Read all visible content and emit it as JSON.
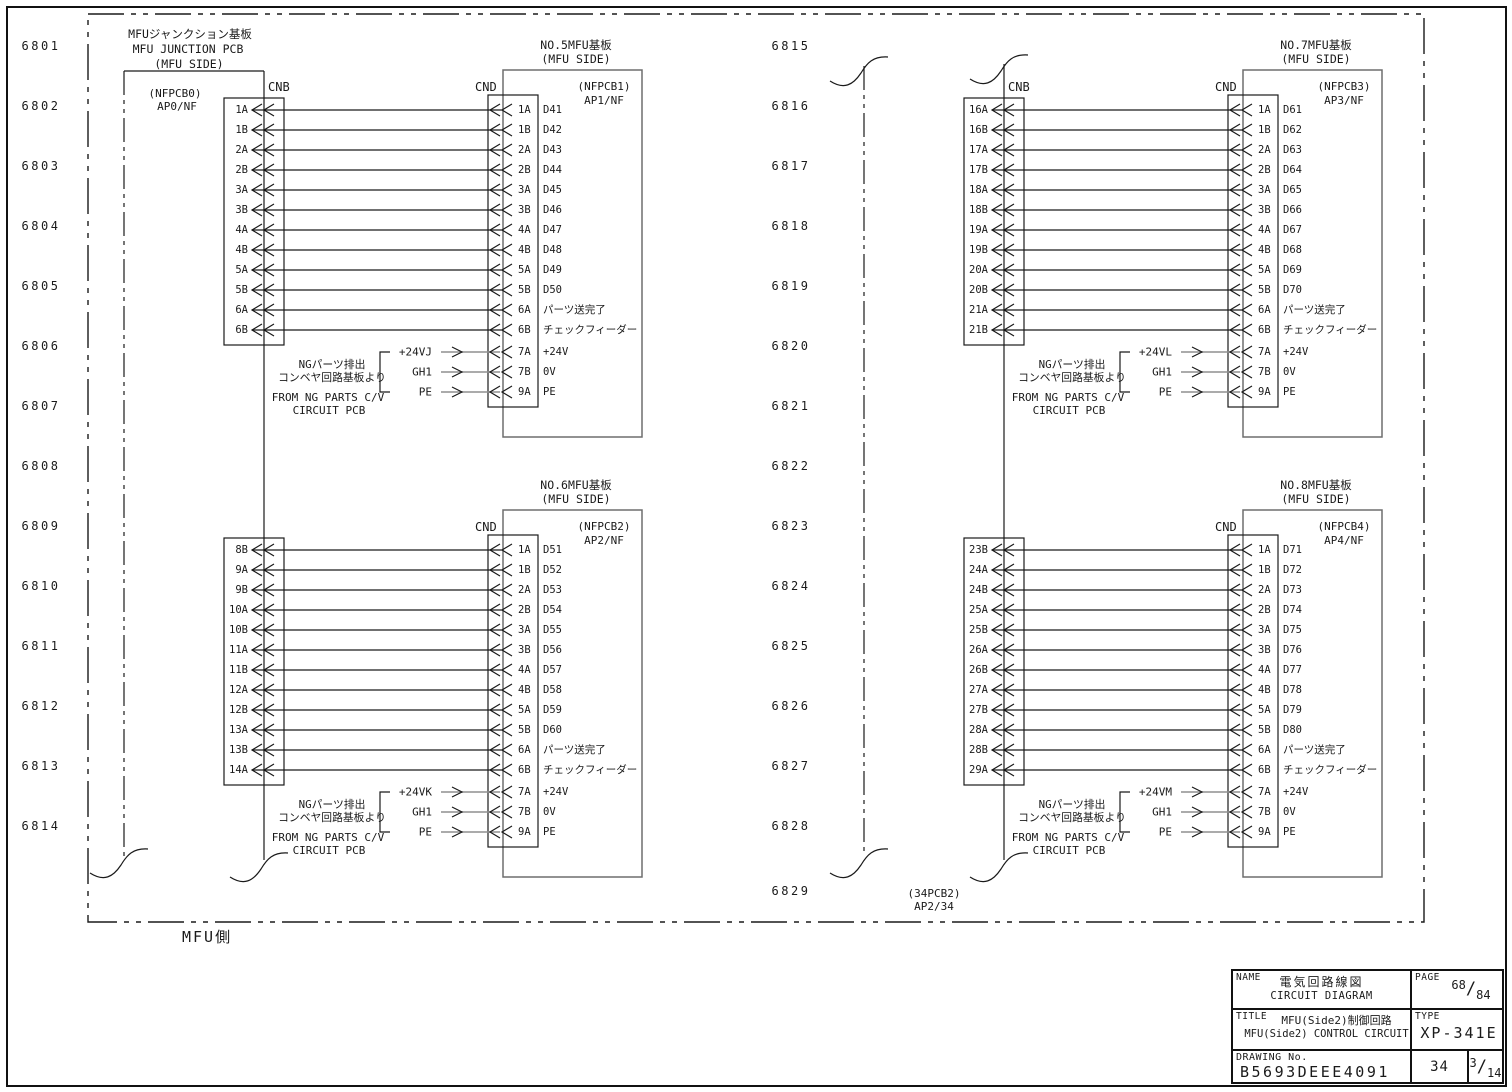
{
  "page": {
    "side_label": "MFU側",
    "row_numbers_left": [
      "6801",
      "6802",
      "6803",
      "6804",
      "6805",
      "6806",
      "6807",
      "6808",
      "6809",
      "6810",
      "6811",
      "6812",
      "6813",
      "6814"
    ],
    "row_numbers_right": [
      "6815",
      "6816",
      "6817",
      "6818",
      "6819",
      "6820",
      "6821",
      "6822",
      "6823",
      "6824",
      "6825",
      "6826",
      "6827",
      "6828",
      "6829"
    ]
  },
  "junction_pcb": {
    "title_jp": "MFUジャンクション基板",
    "title_en": "MFU JUNCTION PCB",
    "side": "(MFU SIDE)",
    "ref": "(NFPCB0)",
    "designator": "AP0/NF",
    "connector": "CNB"
  },
  "tail": {
    "ref": "(34PCB2)",
    "designator": "AP2/34"
  },
  "ng_source_note": {
    "jp_line1": "NGパーツ排出",
    "jp_line2": "コンベヤ回路基板より",
    "en_line1": "FROM NG PARTS C/V",
    "en_line2": "CIRCUIT PCB"
  },
  "boards": [
    {
      "title_jp": "NO.5MFU基板",
      "side": "(MFU SIDE)",
      "ref": "(NFPCB1)",
      "designator": "AP1/NF",
      "cnb_label": "CNB",
      "cnd_label": "CND",
      "pins": [
        {
          "cnb": "1A",
          "cnd": "1A",
          "signal": "D41"
        },
        {
          "cnb": "1B",
          "cnd": "1B",
          "signal": "D42"
        },
        {
          "cnb": "2A",
          "cnd": "2A",
          "signal": "D43"
        },
        {
          "cnb": "2B",
          "cnd": "2B",
          "signal": "D44"
        },
        {
          "cnb": "3A",
          "cnd": "3A",
          "signal": "D45"
        },
        {
          "cnb": "3B",
          "cnd": "3B",
          "signal": "D46"
        },
        {
          "cnb": "4A",
          "cnd": "4A",
          "signal": "D47"
        },
        {
          "cnb": "4B",
          "cnd": "4B",
          "signal": "D48"
        },
        {
          "cnb": "5A",
          "cnd": "5A",
          "signal": "D49"
        },
        {
          "cnb": "5B",
          "cnd": "5B",
          "signal": "D50"
        },
        {
          "cnb": "6A",
          "cnd": "6A",
          "signal": "パーツ送完了"
        },
        {
          "cnb": "6B",
          "cnd": "6B",
          "signal": "チェックフィーダー"
        }
      ],
      "power": [
        {
          "wire": "+24VJ",
          "cnd": "7A",
          "signal": "+24V"
        },
        {
          "wire": "GH1",
          "cnd": "7B",
          "signal": "0V"
        },
        {
          "wire": "PE",
          "cnd": "9A",
          "signal": "PE"
        }
      ]
    },
    {
      "title_jp": "NO.6MFU基板",
      "side": "(MFU SIDE)",
      "ref": "(NFPCB2)",
      "designator": "AP2/NF",
      "cnb_label": null,
      "cnd_label": "CND",
      "pins": [
        {
          "cnb": "8B",
          "cnd": "1A",
          "signal": "D51"
        },
        {
          "cnb": "9A",
          "cnd": "1B",
          "signal": "D52"
        },
        {
          "cnb": "9B",
          "cnd": "2A",
          "signal": "D53"
        },
        {
          "cnb": "10A",
          "cnd": "2B",
          "signal": "D54"
        },
        {
          "cnb": "10B",
          "cnd": "3A",
          "signal": "D55"
        },
        {
          "cnb": "11A",
          "cnd": "3B",
          "signal": "D56"
        },
        {
          "cnb": "11B",
          "cnd": "4A",
          "signal": "D57"
        },
        {
          "cnb": "12A",
          "cnd": "4B",
          "signal": "D58"
        },
        {
          "cnb": "12B",
          "cnd": "5A",
          "signal": "D59"
        },
        {
          "cnb": "13A",
          "cnd": "5B",
          "signal": "D60"
        },
        {
          "cnb": "13B",
          "cnd": "6A",
          "signal": "パーツ送完了"
        },
        {
          "cnb": "14A",
          "cnd": "6B",
          "signal": "チェックフィーダー"
        }
      ],
      "power": [
        {
          "wire": "+24VK",
          "cnd": "7A",
          "signal": "+24V"
        },
        {
          "wire": "GH1",
          "cnd": "7B",
          "signal": "0V"
        },
        {
          "wire": "PE",
          "cnd": "9A",
          "signal": "PE"
        }
      ]
    },
    {
      "title_jp": "NO.7MFU基板",
      "side": "(MFU SIDE)",
      "ref": "(NFPCB3)",
      "designator": "AP3/NF",
      "cnb_label": "CNB",
      "cnd_label": "CND",
      "pins": [
        {
          "cnb": "16A",
          "cnd": "1A",
          "signal": "D61"
        },
        {
          "cnb": "16B",
          "cnd": "1B",
          "signal": "D62"
        },
        {
          "cnb": "17A",
          "cnd": "2A",
          "signal": "D63"
        },
        {
          "cnb": "17B",
          "cnd": "2B",
          "signal": "D64"
        },
        {
          "cnb": "18A",
          "cnd": "3A",
          "signal": "D65"
        },
        {
          "cnb": "18B",
          "cnd": "3B",
          "signal": "D66"
        },
        {
          "cnb": "19A",
          "cnd": "4A",
          "signal": "D67"
        },
        {
          "cnb": "19B",
          "cnd": "4B",
          "signal": "D68"
        },
        {
          "cnb": "20A",
          "cnd": "5A",
          "signal": "D69"
        },
        {
          "cnb": "20B",
          "cnd": "5B",
          "signal": "D70"
        },
        {
          "cnb": "21A",
          "cnd": "6A",
          "signal": "パーツ送完了"
        },
        {
          "cnb": "21B",
          "cnd": "6B",
          "signal": "チェックフィーダー"
        }
      ],
      "power": [
        {
          "wire": "+24VL",
          "cnd": "7A",
          "signal": "+24V"
        },
        {
          "wire": "GH1",
          "cnd": "7B",
          "signal": "0V"
        },
        {
          "wire": "PE",
          "cnd": "9A",
          "signal": "PE"
        }
      ]
    },
    {
      "title_jp": "NO.8MFU基板",
      "side": "(MFU SIDE)",
      "ref": "(NFPCB4)",
      "designator": "AP4/NF",
      "cnb_label": null,
      "cnd_label": "CND",
      "pins": [
        {
          "cnb": "23B",
          "cnd": "1A",
          "signal": "D71"
        },
        {
          "cnb": "24A",
          "cnd": "1B",
          "signal": "D72"
        },
        {
          "cnb": "24B",
          "cnd": "2A",
          "signal": "D73"
        },
        {
          "cnb": "25A",
          "cnd": "2B",
          "signal": "D74"
        },
        {
          "cnb": "25B",
          "cnd": "3A",
          "signal": "D75"
        },
        {
          "cnb": "26A",
          "cnd": "3B",
          "signal": "D76"
        },
        {
          "cnb": "26B",
          "cnd": "4A",
          "signal": "D77"
        },
        {
          "cnb": "27A",
          "cnd": "4B",
          "signal": "D78"
        },
        {
          "cnb": "27B",
          "cnd": "5A",
          "signal": "D79"
        },
        {
          "cnb": "28A",
          "cnd": "5B",
          "signal": "D80"
        },
        {
          "cnb": "28B",
          "cnd": "6A",
          "signal": "パーツ送完了"
        },
        {
          "cnb": "29A",
          "cnd": "6B",
          "signal": "チェックフィーダー"
        }
      ],
      "power": [
        {
          "wire": "+24VM",
          "cnd": "7A",
          "signal": "+24V"
        },
        {
          "wire": "GH1",
          "cnd": "7B",
          "signal": "0V"
        },
        {
          "wire": "PE",
          "cnd": "9A",
          "signal": "PE"
        }
      ]
    }
  ],
  "title_block": {
    "name_label": "NAME",
    "name_jp": "電気回路線図",
    "name_en": "CIRCUIT DIAGRAM",
    "page_label": "PAGE",
    "page_num": "68",
    "page_total": "84",
    "title_label": "TITLE",
    "title_jp": "MFU(Side2)制御回路",
    "title_en": "MFU(Side2) CONTROL CIRCUIT",
    "type_label": "TYPE",
    "type_value": "XP-341E",
    "drawing_label": "DRAWING No.",
    "drawing_no": "B5693DEEE4091",
    "sheet_no": "34",
    "sheet_frac_num": "3",
    "sheet_frac_den": "14"
  }
}
